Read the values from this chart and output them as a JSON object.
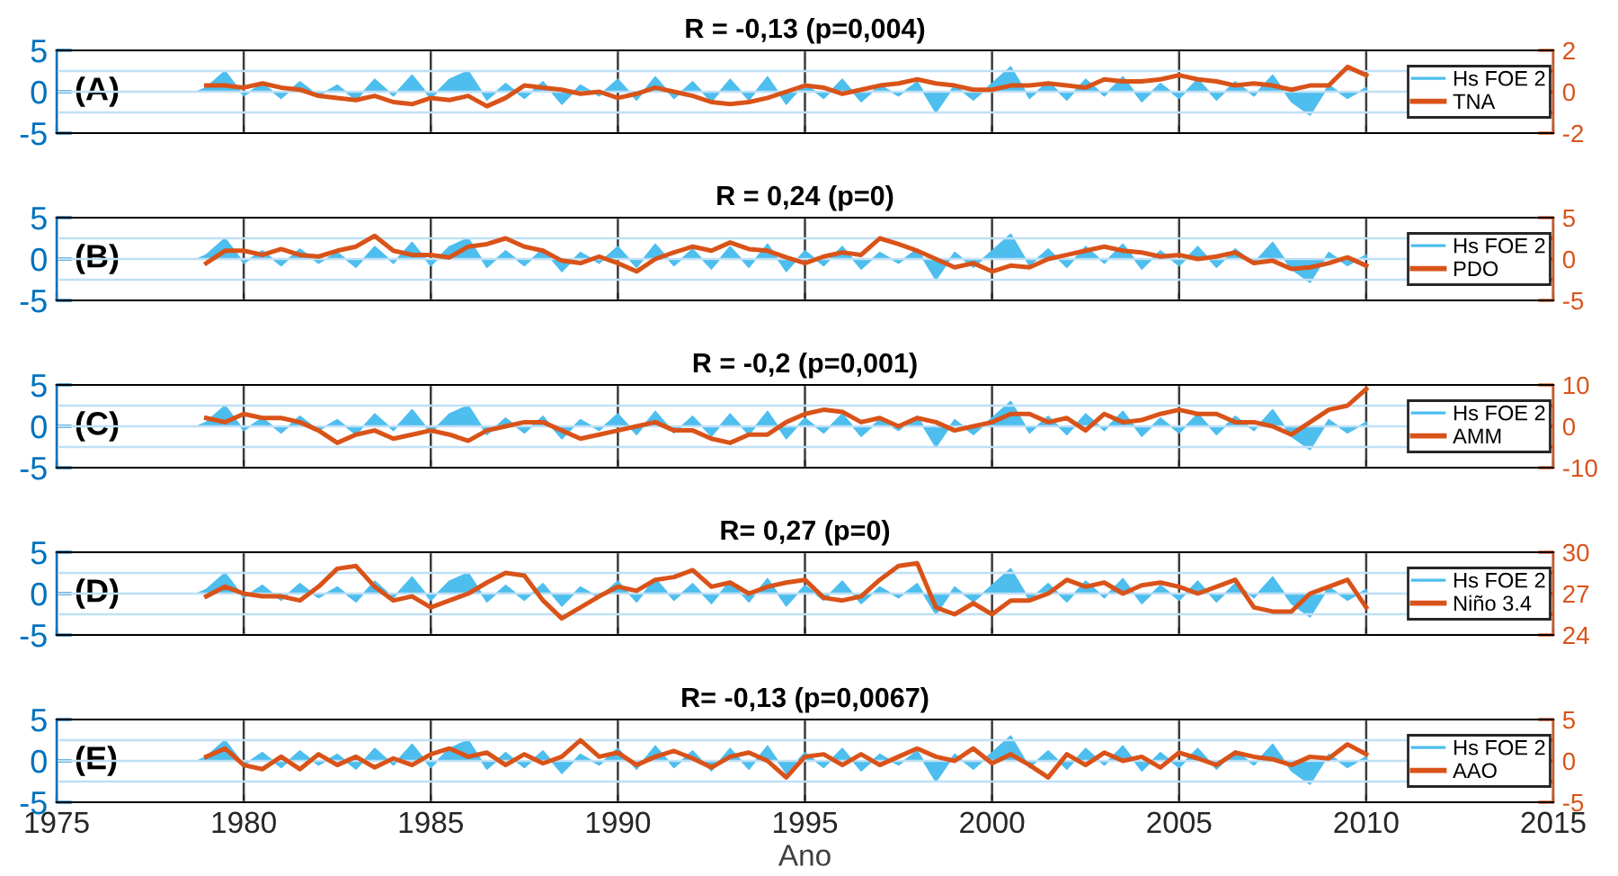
{
  "chart_data": [
    {
      "type": "area",
      "title": "R = -0,13 (p=0,004)",
      "annotations": [
        "(A)"
      ],
      "xlim": [
        1975,
        2015
      ],
      "xticks": [
        1975,
        1980,
        1985,
        1990,
        1995,
        2000,
        2005,
        2010,
        2015
      ],
      "ylim": [
        -5,
        5
      ],
      "yticks": [
        -5,
        0,
        5
      ],
      "y2lim": [
        -2,
        2
      ],
      "y2ticks": [
        -2,
        {
          "value": -1,
          "label": null
        },
        0,
        {
          "value": 1,
          "label": null
        },
        2
      ],
      "grid": true,
      "legend": "right",
      "tick_labels": "y",
      "series": [
        {
          "name": "Hs FOE 2",
          "color": "#4dbeee",
          "x": [
            1977,
            1978.75,
            1979,
            1979.5,
            1980,
            1980.5,
            1981,
            1981.5,
            1982,
            1982.5,
            1983,
            1983.5,
            1984,
            1984.5,
            1985,
            1985.5,
            1986,
            1986.5,
            1987,
            1987.5,
            1988,
            1988.5,
            1989,
            1989.5,
            1990,
            1990.5,
            1991,
            1991.5,
            1992,
            1992.5,
            1993,
            1993.5,
            1994,
            1994.5,
            1995,
            1995.5,
            1996,
            1996.5,
            1997,
            1997.5,
            1998,
            1998.5,
            1999,
            1999.5,
            2000,
            2000.5,
            2001,
            2001.5,
            2002,
            2002.5,
            2003,
            2003.5,
            2004,
            2004.5,
            2005,
            2005.5,
            2006,
            2006.5,
            2007,
            2007.5,
            2008,
            2008.5,
            2009,
            2009.5,
            2010
          ],
          "values": [
            0,
            0,
            0.5,
            2.5,
            -0.5,
            1.0,
            -0.8,
            1.2,
            -0.5,
            0.8,
            -1.0,
            1.5,
            -0.5,
            2.0,
            -0.8,
            1.5,
            2.5,
            -1.0,
            1.0,
            -0.8,
            1.2,
            -1.5,
            0.8,
            -0.5,
            1.5,
            -1.0,
            1.8,
            -0.8,
            1.2,
            -1.2,
            1.5,
            -1.0,
            1.8,
            -1.5,
            1.0,
            -0.8,
            1.5,
            -1.2,
            0.8,
            -0.5,
            1.2,
            -2.5,
            0.8,
            -1.0,
            1.0,
            3.0,
            -0.8,
            1.2,
            -1.0,
            1.5,
            -0.5,
            1.8,
            -1.2,
            1.0,
            -0.8,
            1.5,
            -1.0,
            1.2,
            -0.5,
            2.0,
            -1.2,
            -2.8,
            0.8,
            -0.8,
            0.5
          ]
        },
        {
          "name": "TNA",
          "type": "line",
          "axis": "y2",
          "color": "#d95319",
          "x": [
            1979,
            1979.5,
            1980,
            1980.5,
            1981,
            1981.5,
            1982,
            1982.5,
            1983,
            1983.5,
            1984,
            1984.5,
            1985,
            1985.5,
            1986,
            1986.5,
            1987,
            1987.5,
            1988,
            1988.5,
            1989,
            1989.5,
            1990,
            1990.5,
            1991,
            1991.5,
            1992,
            1992.5,
            1993,
            1993.5,
            1994,
            1994.5,
            1995,
            1995.5,
            1996,
            1996.5,
            1997,
            1997.5,
            1998,
            1998.5,
            1999,
            1999.5,
            2000,
            2000.5,
            2001,
            2001.5,
            2002,
            2002.5,
            2003,
            2003.5,
            2004,
            2004.5,
            2005,
            2005.5,
            2006,
            2006.5,
            2007,
            2007.5,
            2008,
            2008.5,
            2009,
            2009.5,
            2010
          ],
          "values": [
            0.3,
            0.3,
            0.2,
            0.4,
            0.2,
            0.1,
            -0.2,
            -0.3,
            -0.4,
            -0.2,
            -0.5,
            -0.6,
            -0.3,
            -0.4,
            -0.2,
            -0.7,
            -0.3,
            0.3,
            0.2,
            0.1,
            -0.1,
            0.0,
            -0.3,
            -0.1,
            0.2,
            0.0,
            -0.2,
            -0.5,
            -0.6,
            -0.5,
            -0.3,
            0.0,
            0.3,
            0.2,
            -0.1,
            0.1,
            0.3,
            0.4,
            0.6,
            0.4,
            0.3,
            0.1,
            0.1,
            0.3,
            0.3,
            0.4,
            0.3,
            0.2,
            0.6,
            0.5,
            0.5,
            0.6,
            0.8,
            0.6,
            0.5,
            0.3,
            0.4,
            0.3,
            0.1,
            0.3,
            0.3,
            1.2,
            0.8
          ]
        }
      ]
    },
    {
      "type": "area",
      "title": "R = 0,24 (p=0)",
      "annotations": [
        "(B)"
      ],
      "xlim": [
        1975,
        2015
      ],
      "xticks": [
        1975,
        1980,
        1985,
        1990,
        1995,
        2000,
        2005,
        2010,
        2015
      ],
      "ylim": [
        -5,
        5
      ],
      "yticks": [
        -5,
        0,
        5
      ],
      "y2lim": [
        -5,
        5
      ],
      "y2ticks": [
        -5,
        {
          "value": -2.5,
          "label": null
        },
        0,
        {
          "value": 2.5,
          "label": null
        },
        5
      ],
      "grid": true,
      "legend": "right",
      "tick_labels": "y",
      "series": [
        {
          "name": "Hs FOE 2",
          "color": "#4dbeee",
          "x": [
            1977,
            1978.75,
            1979,
            1979.5,
            1980,
            1980.5,
            1981,
            1981.5,
            1982,
            1982.5,
            1983,
            1983.5,
            1984,
            1984.5,
            1985,
            1985.5,
            1986,
            1986.5,
            1987,
            1987.5,
            1988,
            1988.5,
            1989,
            1989.5,
            1990,
            1990.5,
            1991,
            1991.5,
            1992,
            1992.5,
            1993,
            1993.5,
            1994,
            1994.5,
            1995,
            1995.5,
            1996,
            1996.5,
            1997,
            1997.5,
            1998,
            1998.5,
            1999,
            1999.5,
            2000,
            2000.5,
            2001,
            2001.5,
            2002,
            2002.5,
            2003,
            2003.5,
            2004,
            2004.5,
            2005,
            2005.5,
            2006,
            2006.5,
            2007,
            2007.5,
            2008,
            2008.5,
            2009,
            2009.5,
            2010
          ],
          "values": [
            0,
            0,
            0.5,
            2.5,
            -0.5,
            1.0,
            -0.8,
            1.2,
            -0.5,
            0.8,
            -1.0,
            1.5,
            -0.5,
            2.0,
            -0.8,
            1.5,
            2.5,
            -1.0,
            1.0,
            -0.8,
            1.2,
            -1.5,
            0.8,
            -0.5,
            1.5,
            -1.0,
            1.8,
            -0.8,
            1.2,
            -1.2,
            1.5,
            -1.0,
            1.8,
            -1.5,
            1.0,
            -0.8,
            1.5,
            -1.2,
            0.8,
            -0.5,
            1.2,
            -2.5,
            0.8,
            -1.0,
            1.0,
            3.0,
            -0.8,
            1.2,
            -1.0,
            1.5,
            -0.5,
            1.8,
            -1.2,
            1.0,
            -0.8,
            1.5,
            -1.0,
            1.2,
            -0.5,
            2.0,
            -1.2,
            -2.8,
            0.8,
            -0.8,
            0.5
          ]
        },
        {
          "name": "PDO",
          "type": "line",
          "axis": "y2",
          "color": "#d95319",
          "x": [
            1979,
            1979.5,
            1980,
            1980.5,
            1981,
            1981.5,
            1982,
            1982.5,
            1983,
            1983.5,
            1984,
            1984.5,
            1985,
            1985.5,
            1986,
            1986.5,
            1987,
            1987.5,
            1988,
            1988.5,
            1989,
            1989.5,
            1990,
            1990.5,
            1991,
            1991.5,
            1992,
            1992.5,
            1993,
            1993.5,
            1994,
            1994.5,
            1995,
            1995.5,
            1996,
            1996.5,
            1997,
            1997.5,
            1998,
            1998.5,
            1999,
            1999.5,
            2000,
            2000.5,
            2001,
            2001.5,
            2002,
            2002.5,
            2003,
            2003.5,
            2004,
            2004.5,
            2005,
            2005.5,
            2006,
            2006.5,
            2007,
            2007.5,
            2008,
            2008.5,
            2009,
            2009.5,
            2010
          ],
          "values": [
            -0.5,
            1,
            1,
            0.5,
            1.2,
            0.5,
            0.3,
            1,
            1.5,
            2.8,
            1,
            0.5,
            0.5,
            0.2,
            1.5,
            1.8,
            2.5,
            1.5,
            1,
            -0.2,
            -0.5,
            0.3,
            -0.5,
            -1.5,
            0,
            0.8,
            1.5,
            1,
            2,
            1.2,
            1,
            0.2,
            -0.5,
            0.3,
            0.8,
            0.5,
            2.5,
            1.8,
            1,
            0,
            -1,
            -0.5,
            -1.5,
            -0.8,
            -1,
            0,
            0.5,
            1,
            1.5,
            1,
            0.8,
            0.3,
            0.5,
            0,
            0.3,
            0.8,
            -0.5,
            -0.2,
            -1.2,
            -1,
            -0.5,
            0.2,
            -0.8
          ]
        }
      ]
    },
    {
      "type": "area",
      "title": "R = -0,2 (p=0,001)",
      "annotations": [
        "(C)"
      ],
      "xlim": [
        1975,
        2015
      ],
      "xticks": [
        1975,
        1980,
        1985,
        1990,
        1995,
        2000,
        2005,
        2010,
        2015
      ],
      "ylim": [
        -5,
        5
      ],
      "yticks": [
        -5,
        0,
        5
      ],
      "y2lim": [
        -10,
        10
      ],
      "y2ticks": [
        -10,
        {
          "value": -5,
          "label": null
        },
        0,
        {
          "value": 5,
          "label": null
        },
        10
      ],
      "grid": true,
      "legend": "right",
      "tick_labels": "y",
      "series": [
        {
          "name": "Hs FOE 2",
          "color": "#4dbeee",
          "x": [
            1977,
            1978.75,
            1979,
            1979.5,
            1980,
            1980.5,
            1981,
            1981.5,
            1982,
            1982.5,
            1983,
            1983.5,
            1984,
            1984.5,
            1985,
            1985.5,
            1986,
            1986.5,
            1987,
            1987.5,
            1988,
            1988.5,
            1989,
            1989.5,
            1990,
            1990.5,
            1991,
            1991.5,
            1992,
            1992.5,
            1993,
            1993.5,
            1994,
            1994.5,
            1995,
            1995.5,
            1996,
            1996.5,
            1997,
            1997.5,
            1998,
            1998.5,
            1999,
            1999.5,
            2000,
            2000.5,
            2001,
            2001.5,
            2002,
            2002.5,
            2003,
            2003.5,
            2004,
            2004.5,
            2005,
            2005.5,
            2006,
            2006.5,
            2007,
            2007.5,
            2008,
            2008.5,
            2009,
            2009.5,
            2010
          ],
          "values": [
            0,
            0,
            0.5,
            2.5,
            -0.5,
            1.0,
            -0.8,
            1.2,
            -0.5,
            0.8,
            -1.0,
            1.5,
            -0.5,
            2.0,
            -0.8,
            1.5,
            2.5,
            -1.0,
            1.0,
            -0.8,
            1.2,
            -1.5,
            0.8,
            -0.5,
            1.5,
            -1.0,
            1.8,
            -0.8,
            1.2,
            -1.2,
            1.5,
            -1.0,
            1.8,
            -1.5,
            1.0,
            -0.8,
            1.5,
            -1.2,
            0.8,
            -0.5,
            1.2,
            -2.5,
            0.8,
            -1.0,
            1.0,
            3.0,
            -0.8,
            1.2,
            -1.0,
            1.5,
            -0.5,
            1.8,
            -1.2,
            1.0,
            -0.8,
            1.5,
            -1.0,
            1.2,
            -0.5,
            2.0,
            -1.2,
            -2.8,
            0.8,
            -0.8,
            0.5
          ]
        },
        {
          "name": "AMM",
          "type": "line",
          "axis": "y2",
          "color": "#d95319",
          "x": [
            1979,
            1979.5,
            1980,
            1980.5,
            1981,
            1981.5,
            1982,
            1982.5,
            1983,
            1983.5,
            1984,
            1984.5,
            1985,
            1985.5,
            1986,
            1986.5,
            1987,
            1987.5,
            1988,
            1988.5,
            1989,
            1989.5,
            1990,
            1990.5,
            1991,
            1991.5,
            1992,
            1992.5,
            1993,
            1993.5,
            1994,
            1994.5,
            1995,
            1995.5,
            1996,
            1996.5,
            1997,
            1997.5,
            1998,
            1998.5,
            1999,
            1999.5,
            2000,
            2000.5,
            2001,
            2001.5,
            2002,
            2002.5,
            2003,
            2003.5,
            2004,
            2004.5,
            2005,
            2005.5,
            2006,
            2006.5,
            2007,
            2007.5,
            2008,
            2008.5,
            2009,
            2009.5,
            2010
          ],
          "values": [
            2,
            1,
            3,
            2,
            2,
            1,
            -1,
            -4,
            -2,
            -1,
            -3,
            -2,
            -1,
            -2,
            -3.5,
            -1,
            0,
            1,
            1,
            -1,
            -3,
            -2,
            -1,
            0,
            1,
            -1,
            -1,
            -3,
            -4,
            -2,
            -2,
            1,
            3,
            4,
            3.5,
            1,
            2,
            0,
            2,
            1,
            -1,
            0,
            1,
            3,
            3,
            1,
            2,
            -1,
            3,
            1,
            1.5,
            3,
            4,
            3,
            3,
            1,
            1,
            0,
            -2,
            1,
            4,
            5,
            9
          ]
        }
      ]
    },
    {
      "type": "area",
      "title": "R= 0,27 (p=0)",
      "annotations": [
        "(D)"
      ],
      "xlim": [
        1975,
        2015
      ],
      "xticks": [
        1975,
        1980,
        1985,
        1990,
        1995,
        2000,
        2005,
        2010,
        2015
      ],
      "ylim": [
        -5,
        5
      ],
      "yticks": [
        -5,
        0,
        5
      ],
      "y2lim": [
        24,
        30
      ],
      "y2ticks": [
        24,
        {
          "value": 25.5,
          "label": null
        },
        27,
        {
          "value": 28.5,
          "label": null
        },
        30
      ],
      "grid": true,
      "legend": "right",
      "tick_labels": "y",
      "series": [
        {
          "name": "Hs FOE 2",
          "color": "#4dbeee",
          "x": [
            1977,
            1978.75,
            1979,
            1979.5,
            1980,
            1980.5,
            1981,
            1981.5,
            1982,
            1982.5,
            1983,
            1983.5,
            1984,
            1984.5,
            1985,
            1985.5,
            1986,
            1986.5,
            1987,
            1987.5,
            1988,
            1988.5,
            1989,
            1989.5,
            1990,
            1990.5,
            1991,
            1991.5,
            1992,
            1992.5,
            1993,
            1993.5,
            1994,
            1994.5,
            1995,
            1995.5,
            1996,
            1996.5,
            1997,
            1997.5,
            1998,
            1998.5,
            1999,
            1999.5,
            2000,
            2000.5,
            2001,
            2001.5,
            2002,
            2002.5,
            2003,
            2003.5,
            2004,
            2004.5,
            2005,
            2005.5,
            2006,
            2006.5,
            2007,
            2007.5,
            2008,
            2008.5,
            2009,
            2009.5,
            2010
          ],
          "values": [
            0,
            0,
            0.5,
            2.5,
            -0.5,
            1.0,
            -0.8,
            1.2,
            -0.5,
            0.8,
            -1.0,
            1.5,
            -0.5,
            2.0,
            -0.8,
            1.5,
            2.5,
            -1.0,
            1.0,
            -0.8,
            1.2,
            -1.5,
            0.8,
            -0.5,
            1.5,
            -1.0,
            1.8,
            -0.8,
            1.2,
            -1.2,
            1.5,
            -1.0,
            1.8,
            -1.5,
            1.0,
            -0.8,
            1.5,
            -1.2,
            0.8,
            -0.5,
            1.2,
            -2.5,
            0.8,
            -1.0,
            1.0,
            3.0,
            -0.8,
            1.2,
            -1.0,
            1.5,
            -0.5,
            1.8,
            -1.2,
            1.0,
            -0.8,
            1.5,
            -1.0,
            1.2,
            -0.5,
            2.0,
            -1.2,
            -2.8,
            0.8,
            -0.8,
            0.5
          ]
        },
        {
          "name": "Niño 3.4",
          "type": "line",
          "axis": "y2",
          "color": "#d95319",
          "x": [
            1979,
            1979.5,
            1980,
            1980.5,
            1981,
            1981.5,
            1982,
            1982.5,
            1983,
            1983.5,
            1984,
            1984.5,
            1985,
            1985.5,
            1986,
            1986.5,
            1987,
            1987.5,
            1988,
            1988.5,
            1989,
            1989.5,
            1990,
            1990.5,
            1991,
            1991.5,
            1992,
            1992.5,
            1993,
            1993.5,
            1994,
            1994.5,
            1995,
            1995.5,
            1996,
            1996.5,
            1997,
            1997.5,
            1998,
            1998.5,
            1999,
            1999.5,
            2000,
            2000.5,
            2001,
            2001.5,
            2002,
            2002.5,
            2003,
            2003.5,
            2004,
            2004.5,
            2005,
            2005.5,
            2006,
            2006.5,
            2007,
            2007.5,
            2008,
            2008.5,
            2009,
            2009.5,
            2010
          ],
          "values": [
            26.8,
            27.5,
            27,
            26.8,
            26.8,
            26.5,
            27.5,
            28.8,
            29,
            27.5,
            26.5,
            26.8,
            26,
            26.5,
            27,
            27.8,
            28.5,
            28.3,
            26.5,
            25.2,
            26,
            26.8,
            27.5,
            27.2,
            28,
            28.2,
            28.7,
            27.5,
            27.8,
            27,
            27.5,
            27.8,
            28,
            26.7,
            26.5,
            26.8,
            28,
            29,
            29.2,
            26,
            25.5,
            26.3,
            25.5,
            26.5,
            26.5,
            27,
            28,
            27.5,
            27.8,
            27,
            27.6,
            27.8,
            27.5,
            27,
            27.5,
            28,
            26,
            25.7,
            25.7,
            27,
            27.5,
            28,
            26
          ]
        }
      ]
    },
    {
      "type": "area",
      "title": "R= -0,13 (p=0,0067)",
      "xlabel": "Ano",
      "annotations": [
        "(E)"
      ],
      "xlim": [
        1975,
        2015
      ],
      "xticks": [
        1975,
        1980,
        1985,
        1990,
        1995,
        2000,
        2005,
        2010,
        2015
      ],
      "ylim": [
        -5,
        5
      ],
      "yticks": [
        -5,
        0,
        5
      ],
      "y2lim": [
        -5,
        5
      ],
      "y2ticks": [
        -5,
        {
          "value": -2.5,
          "label": null
        },
        0,
        {
          "value": 2.5,
          "label": null
        },
        5
      ],
      "grid": true,
      "legend": "right",
      "series": [
        {
          "name": "Hs FOE 2",
          "color": "#4dbeee",
          "x": [
            1977,
            1978.75,
            1979,
            1979.5,
            1980,
            1980.5,
            1981,
            1981.5,
            1982,
            1982.5,
            1983,
            1983.5,
            1984,
            1984.5,
            1985,
            1985.5,
            1986,
            1986.5,
            1987,
            1987.5,
            1988,
            1988.5,
            1989,
            1989.5,
            1990,
            1990.5,
            1991,
            1991.5,
            1992,
            1992.5,
            1993,
            1993.5,
            1994,
            1994.5,
            1995,
            1995.5,
            1996,
            1996.5,
            1997,
            1997.5,
            1998,
            1998.5,
            1999,
            1999.5,
            2000,
            2000.5,
            2001,
            2001.5,
            2002,
            2002.5,
            2003,
            2003.5,
            2004,
            2004.5,
            2005,
            2005.5,
            2006,
            2006.5,
            2007,
            2007.5,
            2008,
            2008.5,
            2009,
            2009.5,
            2010
          ],
          "values": [
            0,
            0,
            0.5,
            2.5,
            -0.5,
            1.0,
            -0.8,
            1.2,
            -0.5,
            0.8,
            -1.0,
            1.5,
            -0.5,
            2.0,
            -0.8,
            1.5,
            2.5,
            -1.0,
            1.0,
            -0.8,
            1.2,
            -1.5,
            0.8,
            -0.5,
            1.5,
            -1.0,
            1.8,
            -0.8,
            1.2,
            -1.2,
            1.5,
            -1.0,
            1.8,
            -1.5,
            1.0,
            -0.8,
            1.5,
            -1.2,
            0.8,
            -0.5,
            1.2,
            -2.5,
            0.8,
            -1.0,
            1.0,
            3.0,
            -0.8,
            1.2,
            -1.0,
            1.5,
            -0.5,
            1.8,
            -1.2,
            1.0,
            -0.8,
            1.5,
            -1.0,
            1.2,
            -0.5,
            2.0,
            -1.2,
            -2.8,
            0.8,
            -0.8,
            0.5
          ]
        },
        {
          "name": "AAO",
          "type": "line",
          "axis": "y2",
          "color": "#d95319",
          "x": [
            1979,
            1979.5,
            1980,
            1980.5,
            1981,
            1981.5,
            1982,
            1982.5,
            1983,
            1983.5,
            1984,
            1984.5,
            1985,
            1985.5,
            1986,
            1986.5,
            1987,
            1987.5,
            1988,
            1988.5,
            1989,
            1989.5,
            1990,
            1990.5,
            1991,
            1991.5,
            1992,
            1992.5,
            1993,
            1993.5,
            1994,
            1994.5,
            1995,
            1995.5,
            1996,
            1996.5,
            1997,
            1997.5,
            1998,
            1998.5,
            1999,
            1999.5,
            2000,
            2000.5,
            2001,
            2001.5,
            2002,
            2002.5,
            2003,
            2003.5,
            2004,
            2004.5,
            2005,
            2005.5,
            2006,
            2006.5,
            2007,
            2007.5,
            2008,
            2008.5,
            2009,
            2009.5,
            2010
          ],
          "values": [
            0.5,
            1.5,
            -0.5,
            -1,
            0.5,
            -1,
            0.8,
            -0.5,
            0.5,
            -0.8,
            0.3,
            -0.5,
            0.8,
            1.5,
            0.5,
            1,
            -0.5,
            0.8,
            -0.3,
            0.5,
            2.5,
            0.5,
            1,
            -0.5,
            0.5,
            1.2,
            0.3,
            -0.8,
            0.5,
            1,
            0,
            -2,
            0.5,
            0.8,
            -0.5,
            0.8,
            -0.5,
            0.5,
            1.5,
            0.5,
            0,
            1.5,
            -0.3,
            0.8,
            -0.5,
            -2,
            0.8,
            -0.5,
            1,
            0,
            0.5,
            -0.8,
            1,
            0.3,
            -0.5,
            1,
            0.5,
            0.2,
            -0.5,
            0.5,
            0.3,
            2,
            0.8
          ]
        }
      ]
    }
  ]
}
